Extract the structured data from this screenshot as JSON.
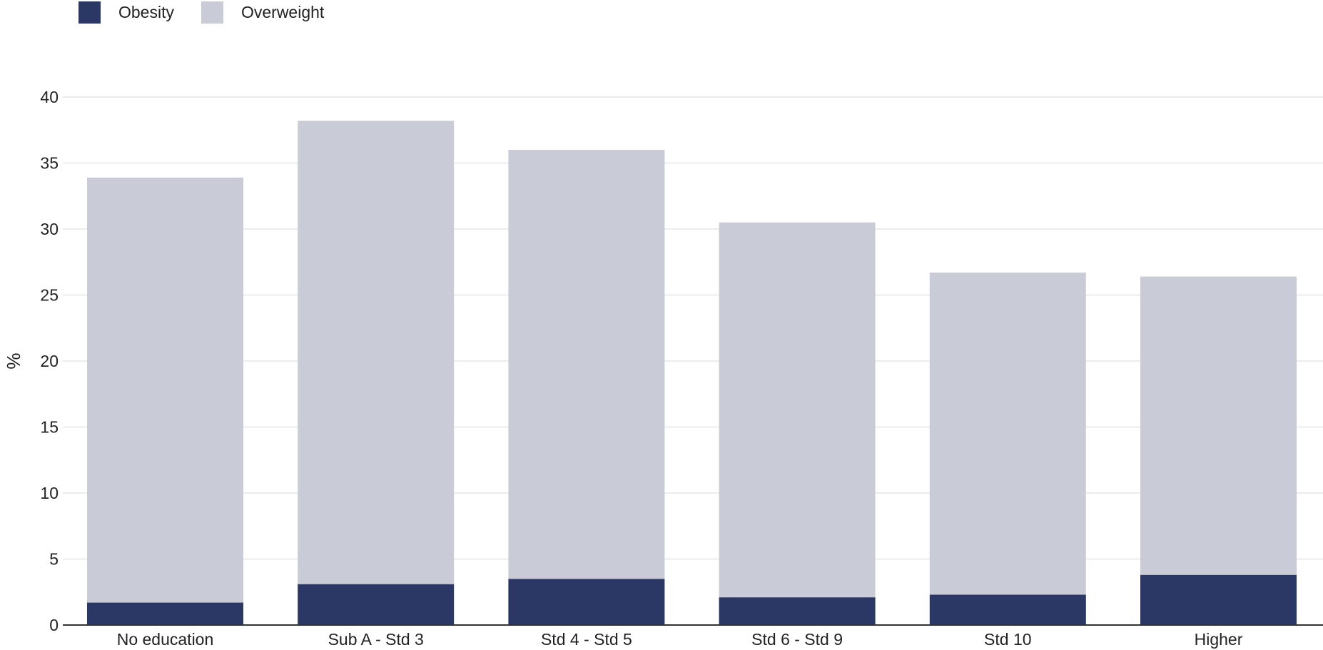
{
  "chart_data": {
    "type": "bar",
    "stacked": true,
    "categories": [
      "No education",
      "Sub A - Std 3",
      "Std 4 - Std 5",
      "Std 6 - Std 9",
      "Std 10",
      "Higher"
    ],
    "series": [
      {
        "name": "Obesity",
        "color": "#2b3765",
        "values": [
          1.7,
          3.1,
          3.5,
          2.1,
          2.3,
          3.8
        ]
      },
      {
        "name": "Overweight",
        "color": "#c9cbd7",
        "values": [
          32.2,
          35.1,
          32.5,
          28.4,
          24.4,
          22.6
        ]
      }
    ],
    "title": "",
    "xlabel": "",
    "ylabel": "%",
    "ylim": [
      0,
      40
    ],
    "yticks": [
      0,
      5,
      10,
      15,
      20,
      25,
      30,
      35,
      40
    ],
    "grid": true,
    "legend_position": "top-left"
  }
}
